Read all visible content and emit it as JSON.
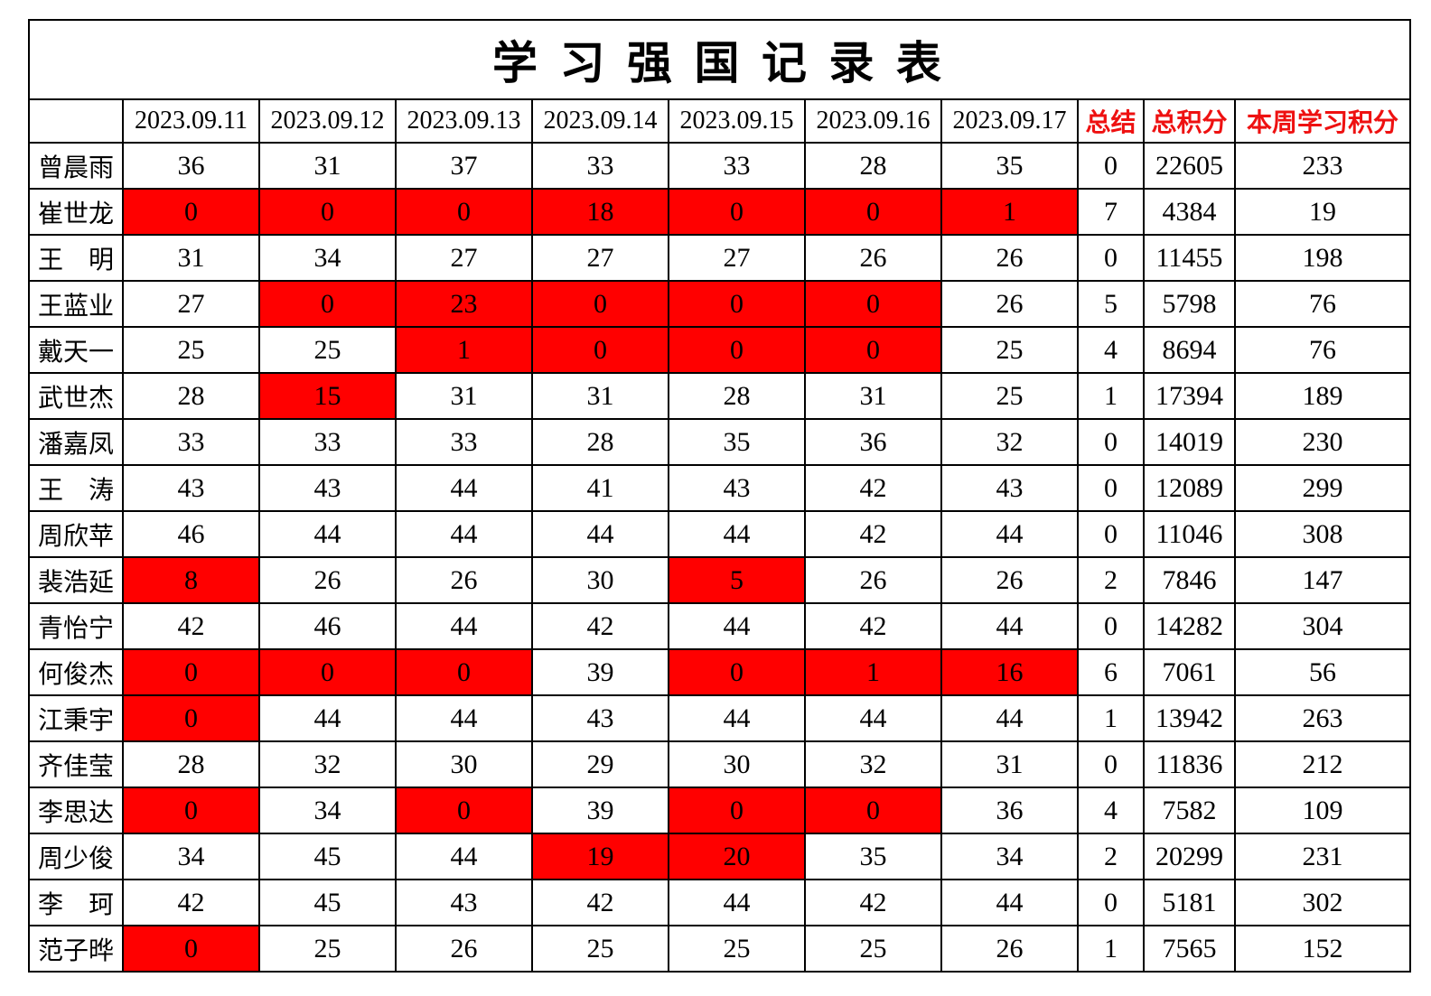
{
  "title": "学 习 强 国 记 录 表",
  "header": {
    "corner": "",
    "dates": [
      "2023.09.11",
      "2023.09.12",
      "2023.09.13",
      "2023.09.14",
      "2023.09.15",
      "2023.09.16",
      "2023.09.17"
    ],
    "summary": [
      "总结",
      "总积分",
      "本周学习积分"
    ]
  },
  "colors": {
    "highlight_bg": "#ff0000",
    "summary_text": "#ee1111",
    "hidden_text_on_red": "#c00000",
    "border": "#000000"
  },
  "cell_style_codes": {
    "0": "plain",
    "1": "red-bg-black-text",
    "2": "red-bg-darkred-text"
  },
  "rows": [
    {
      "name": "曾晨雨",
      "scores": [
        "36",
        "31",
        "37",
        "33",
        "33",
        "28",
        "35"
      ],
      "marks": [
        0,
        0,
        0,
        0,
        0,
        0,
        0
      ],
      "summary": "0",
      "total": "22605",
      "week": "233"
    },
    {
      "name": "崔世龙",
      "scores": [
        "0",
        "0",
        "0",
        "18",
        "0",
        "0",
        "1"
      ],
      "marks": [
        1,
        1,
        1,
        1,
        1,
        1,
        1
      ],
      "summary": "7",
      "total": "4384",
      "week": "19"
    },
    {
      "name": "王　明",
      "scores": [
        "31",
        "34",
        "27",
        "27",
        "27",
        "26",
        "26"
      ],
      "marks": [
        0,
        0,
        0,
        0,
        0,
        0,
        0
      ],
      "summary": "0",
      "total": "11455",
      "week": "198"
    },
    {
      "name": "王蓝业",
      "scores": [
        "27",
        "0",
        "23",
        "0",
        "0",
        "0",
        "26"
      ],
      "marks": [
        0,
        2,
        2,
        2,
        2,
        2,
        0
      ],
      "summary": "5",
      "total": "5798",
      "week": "76"
    },
    {
      "name": "戴天一",
      "scores": [
        "25",
        "25",
        "1",
        "0",
        "0",
        "0",
        "25"
      ],
      "marks": [
        0,
        0,
        2,
        2,
        2,
        2,
        0
      ],
      "summary": "4",
      "total": "8694",
      "week": "76"
    },
    {
      "name": "武世杰",
      "scores": [
        "28",
        "15",
        "31",
        "31",
        "28",
        "31",
        "25"
      ],
      "marks": [
        0,
        2,
        0,
        0,
        0,
        0,
        0
      ],
      "summary": "1",
      "total": "17394",
      "week": "189"
    },
    {
      "name": "潘嘉凤",
      "scores": [
        "33",
        "33",
        "33",
        "28",
        "35",
        "36",
        "32"
      ],
      "marks": [
        0,
        0,
        0,
        0,
        0,
        0,
        0
      ],
      "summary": "0",
      "total": "14019",
      "week": "230"
    },
    {
      "name": "王　涛",
      "scores": [
        "43",
        "43",
        "44",
        "41",
        "43",
        "42",
        "43"
      ],
      "marks": [
        0,
        0,
        0,
        0,
        0,
        0,
        0
      ],
      "summary": "0",
      "total": "12089",
      "week": "299"
    },
    {
      "name": "周欣苹",
      "scores": [
        "46",
        "44",
        "44",
        "44",
        "44",
        "42",
        "44"
      ],
      "marks": [
        0,
        0,
        0,
        0,
        0,
        0,
        0
      ],
      "summary": "0",
      "total": "11046",
      "week": "308"
    },
    {
      "name": "裴浩延",
      "scores": [
        "8",
        "26",
        "26",
        "30",
        "5",
        "26",
        "26"
      ],
      "marks": [
        1,
        0,
        0,
        0,
        1,
        0,
        0
      ],
      "summary": "2",
      "total": "7846",
      "week": "147"
    },
    {
      "name": "青怡宁",
      "scores": [
        "42",
        "46",
        "44",
        "42",
        "44",
        "42",
        "44"
      ],
      "marks": [
        0,
        0,
        0,
        0,
        0,
        0,
        0
      ],
      "summary": "0",
      "total": "14282",
      "week": "304"
    },
    {
      "name": "何俊杰",
      "scores": [
        "0",
        "0",
        "0",
        "39",
        "0",
        "1",
        "16"
      ],
      "marks": [
        1,
        1,
        1,
        0,
        1,
        1,
        1
      ],
      "summary": "6",
      "total": "7061",
      "week": "56"
    },
    {
      "name": "江秉宇",
      "scores": [
        "0",
        "44",
        "44",
        "43",
        "44",
        "44",
        "44"
      ],
      "marks": [
        2,
        0,
        0,
        0,
        0,
        0,
        0
      ],
      "summary": "1",
      "total": "13942",
      "week": "263"
    },
    {
      "name": "齐佳莹",
      "scores": [
        "28",
        "32",
        "30",
        "29",
        "30",
        "32",
        "31"
      ],
      "marks": [
        0,
        0,
        0,
        0,
        0,
        0,
        0
      ],
      "summary": "0",
      "total": "11836",
      "week": "212"
    },
    {
      "name": "李思达",
      "scores": [
        "0",
        "34",
        "0",
        "39",
        "0",
        "0",
        "36"
      ],
      "marks": [
        1,
        0,
        1,
        0,
        1,
        1,
        0
      ],
      "summary": "4",
      "total": "7582",
      "week": "109"
    },
    {
      "name": "周少俊",
      "scores": [
        "34",
        "45",
        "44",
        "19",
        "20",
        "35",
        "34"
      ],
      "marks": [
        0,
        0,
        0,
        1,
        1,
        0,
        0
      ],
      "summary": "2",
      "total": "20299",
      "week": "231"
    },
    {
      "name": "李　珂",
      "scores": [
        "42",
        "45",
        "43",
        "42",
        "44",
        "42",
        "44"
      ],
      "marks": [
        0,
        0,
        0,
        0,
        0,
        0,
        0
      ],
      "summary": "0",
      "total": "5181",
      "week": "302"
    },
    {
      "name": "范子晔",
      "scores": [
        "0",
        "25",
        "26",
        "25",
        "25",
        "25",
        "26"
      ],
      "marks": [
        1,
        0,
        0,
        0,
        0,
        0,
        0
      ],
      "summary": "1",
      "total": "7565",
      "week": "152"
    }
  ]
}
